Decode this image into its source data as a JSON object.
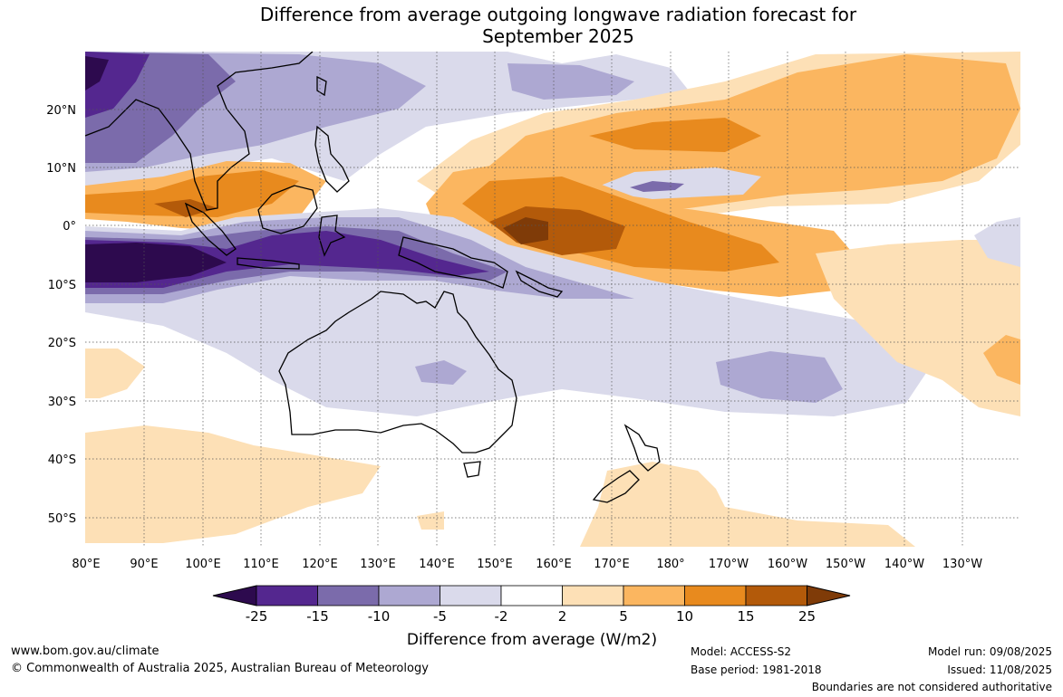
{
  "title": {
    "line1": "Difference from average outgoing longwave radiation forecast for",
    "line2": "September 2025"
  },
  "map": {
    "lat_labels": [
      "20°N",
      "10°N",
      "0°",
      "10°S",
      "20°S",
      "30°S",
      "40°S",
      "50°S"
    ],
    "lon_labels": [
      "80°E",
      "90°E",
      "100°E",
      "110°E",
      "120°E",
      "130°E",
      "140°E",
      "150°E",
      "160°E",
      "170°E",
      "180°",
      "170°W",
      "160°W",
      "150°W",
      "140°W",
      "130°W"
    ]
  },
  "colorbar": {
    "colors": [
      "#2d0a4e",
      "#54278f",
      "#7b6bab",
      "#ada8d2",
      "#dadaeb",
      "#ffffff",
      "#fde0b6",
      "#fbb660",
      "#e88a1e",
      "#b35a0a",
      "#7f3b08"
    ],
    "tick_labels": [
      "-25",
      "-15",
      "-10",
      "-5",
      "-2",
      "2",
      "5",
      "10",
      "15",
      "25"
    ],
    "label": "Difference from average (W/m2)"
  },
  "footer": {
    "website": "www.bom.gov.au/climate",
    "copyright": "© Commonwealth of Australia 2025, Australian Bureau of Meteorology",
    "model": "Model: ACCESS-S2",
    "base_period": "Base period: 1981-2018",
    "model_run": "Model run: 09/08/2025",
    "issued": "Issued: 11/08/2025",
    "disclaimer": "Boundaries are not considered authoritative"
  }
}
